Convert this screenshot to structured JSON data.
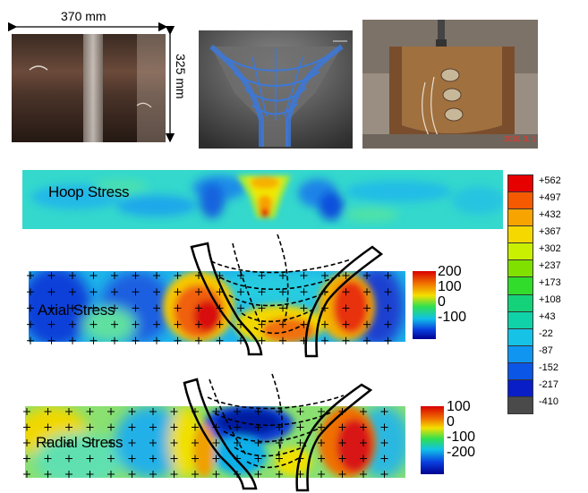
{
  "specimen": {
    "width_label": "370 mm",
    "height_label": "325 mm"
  },
  "maps": {
    "hoop_label": "Hoop Stress",
    "axial_label": "Axial Stress",
    "radial_label": "Radial Stress"
  },
  "hoop_colorbar": {
    "ticks": [
      "+562",
      "+497",
      "+432",
      "+367",
      "+302",
      "+237",
      "+173",
      "+108",
      "+43",
      "-22",
      "-87",
      "-152",
      "-217",
      "-410"
    ],
    "colors": [
      "#e60000",
      "#f55a00",
      "#f7a400",
      "#f5d800",
      "#c8f000",
      "#80e000",
      "#32dc2a",
      "#14d27a",
      "#10d2a8",
      "#16c2e6",
      "#1096f0",
      "#0c56e6",
      "#0a1ec8",
      "#4a4a4a"
    ]
  },
  "axial_colorbar": {
    "ticks": [
      "200",
      "100",
      "0",
      "-100"
    ]
  },
  "radial_colorbar": {
    "ticks": [
      "100",
      "0",
      "-100",
      "-200"
    ]
  },
  "photo3_stamp": "2010. 3. 1"
}
